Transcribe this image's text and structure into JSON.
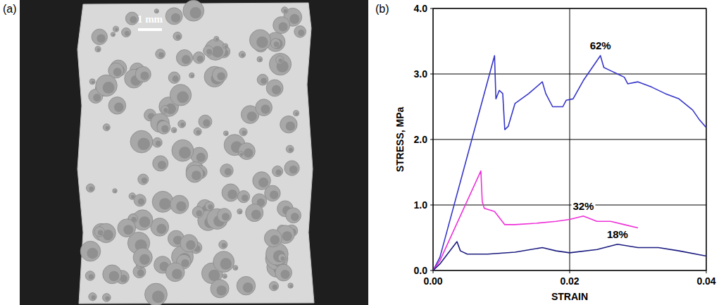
{
  "photo": {
    "panel_label": "(a)",
    "scale_bar": "1 mm"
  },
  "chart_data": {
    "type": "line",
    "panel_label": "(b)",
    "x_label": "STRAIN",
    "y_label": "STRESS, MPa",
    "xlim": [
      0,
      0.04
    ],
    "ylim": [
      0,
      4
    ],
    "xticks": [
      {
        "value": 0,
        "label": "0.00"
      },
      {
        "value": 0.02,
        "label": "0.02"
      },
      {
        "value": 0.04,
        "label": "0.04"
      }
    ],
    "yticks": [
      {
        "value": 0,
        "label": "0.0"
      },
      {
        "value": 1,
        "label": "1.0"
      },
      {
        "value": 2,
        "label": "2.0"
      },
      {
        "value": 3,
        "label": "3.0"
      },
      {
        "value": 4,
        "label": "4.0"
      }
    ],
    "grid": true,
    "series": [
      {
        "name": "62%",
        "color": "#3535c8",
        "x": [
          0,
          0.001,
          0.009,
          0.0092,
          0.0097,
          0.0102,
          0.0105,
          0.011,
          0.012,
          0.014,
          0.016,
          0.0165,
          0.0175,
          0.019,
          0.0195,
          0.0205,
          0.022,
          0.0245,
          0.025,
          0.026,
          0.027,
          0.028,
          0.0285,
          0.03,
          0.032,
          0.034,
          0.036,
          0.038,
          0.039,
          0.04
        ],
        "values": [
          0,
          0.2,
          3.28,
          2.62,
          2.75,
          2.7,
          2.15,
          2.2,
          2.55,
          2.7,
          2.88,
          2.7,
          2.5,
          2.5,
          2.6,
          2.62,
          2.9,
          3.28,
          3.1,
          3.05,
          3.0,
          2.95,
          2.85,
          2.88,
          2.8,
          2.7,
          2.62,
          2.45,
          2.3,
          2.18
        ]
      },
      {
        "name": "32%",
        "color": "#ee30d8",
        "x": [
          0,
          0.001,
          0.007,
          0.0072,
          0.0075,
          0.009,
          0.0105,
          0.012,
          0.015,
          0.018,
          0.02,
          0.022,
          0.024,
          0.026,
          0.028,
          0.03
        ],
        "values": [
          0,
          0.15,
          1.52,
          1.05,
          0.95,
          0.9,
          0.7,
          0.7,
          0.72,
          0.75,
          0.78,
          0.83,
          0.75,
          0.75,
          0.7,
          0.65
        ]
      },
      {
        "name": "18%",
        "color": "#1c1c80",
        "x": [
          0,
          0.001,
          0.0035,
          0.004,
          0.005,
          0.008,
          0.012,
          0.016,
          0.018,
          0.02,
          0.024,
          0.027,
          0.03,
          0.033,
          0.036,
          0.04
        ],
        "values": [
          0,
          0.1,
          0.44,
          0.3,
          0.25,
          0.25,
          0.28,
          0.35,
          0.3,
          0.27,
          0.32,
          0.4,
          0.35,
          0.35,
          0.3,
          0.22
        ]
      }
    ]
  }
}
